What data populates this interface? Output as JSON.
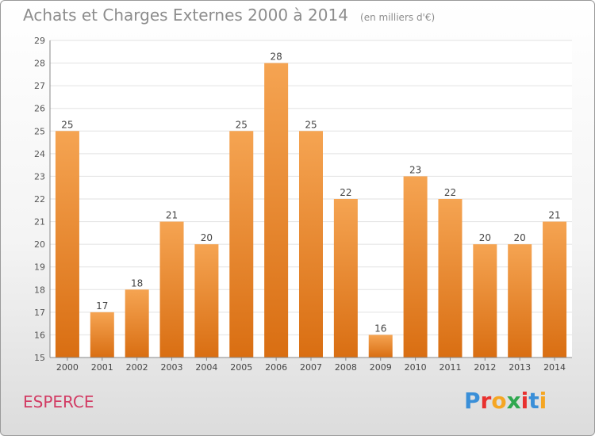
{
  "title": "Achats et Charges Externes 2000 à 2014",
  "unit_note": "(en milliers d'€)",
  "commune": "ESPERCE",
  "logo": {
    "text": "Proxiti",
    "colors": [
      "#3a8fd8",
      "#e8312f",
      "#f5a623",
      "#2fa84f",
      "#e8312f",
      "#3a8fd8",
      "#f5a623"
    ]
  },
  "colors": {
    "bar_light": "#f5a452",
    "bar_dark": "#d96e12",
    "commune": "#d23c64",
    "title": "#8c8c8c"
  },
  "chart_data": {
    "type": "bar",
    "categories": [
      "2000",
      "2001",
      "2002",
      "2003",
      "2004",
      "2005",
      "2006",
      "2007",
      "2008",
      "2009",
      "2010",
      "2011",
      "2012",
      "2013",
      "2014"
    ],
    "values": [
      25,
      17,
      18,
      21,
      20,
      25,
      28,
      25,
      22,
      16,
      23,
      22,
      20,
      20,
      21
    ],
    "ylim": [
      15,
      29
    ],
    "yticks": [
      15,
      16,
      17,
      18,
      19,
      20,
      21,
      22,
      23,
      24,
      25,
      26,
      27,
      28,
      29
    ],
    "grid": true,
    "data_labels": true
  }
}
